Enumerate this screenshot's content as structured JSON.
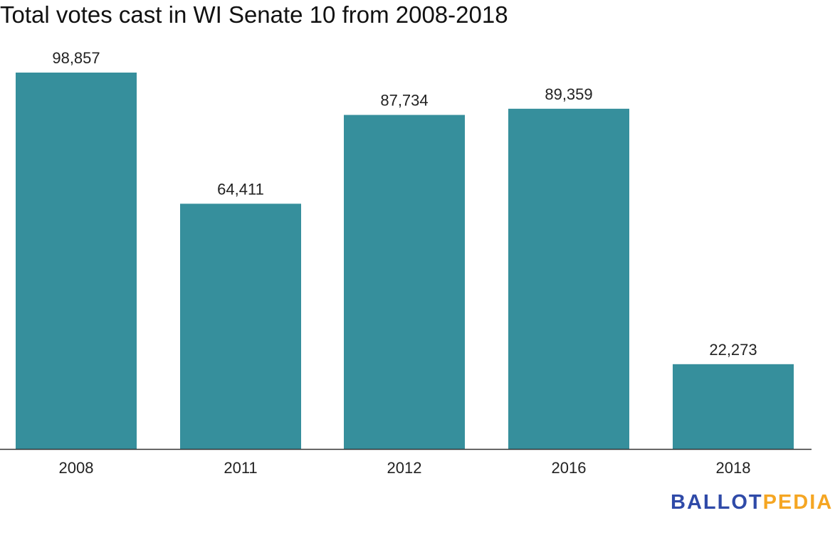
{
  "chart_data": {
    "type": "bar",
    "title": "Total votes cast in WI Senate 10 from 2008-2018",
    "categories": [
      "2008",
      "2011",
      "2012",
      "2016",
      "2018"
    ],
    "values": [
      98857,
      64411,
      87734,
      89359,
      22273
    ],
    "data_labels": [
      "98,857",
      "64,411",
      "87,734",
      "89,359",
      "22,273"
    ],
    "xlabel": "",
    "ylabel": "",
    "ylim": [
      0,
      98857
    ],
    "grid": false,
    "bar_color": "#368f9c"
  },
  "logo": {
    "part1": "BALLOT",
    "part2": "PEDIA",
    "color1": "#2f4aa8",
    "color2": "#f5a623"
  }
}
